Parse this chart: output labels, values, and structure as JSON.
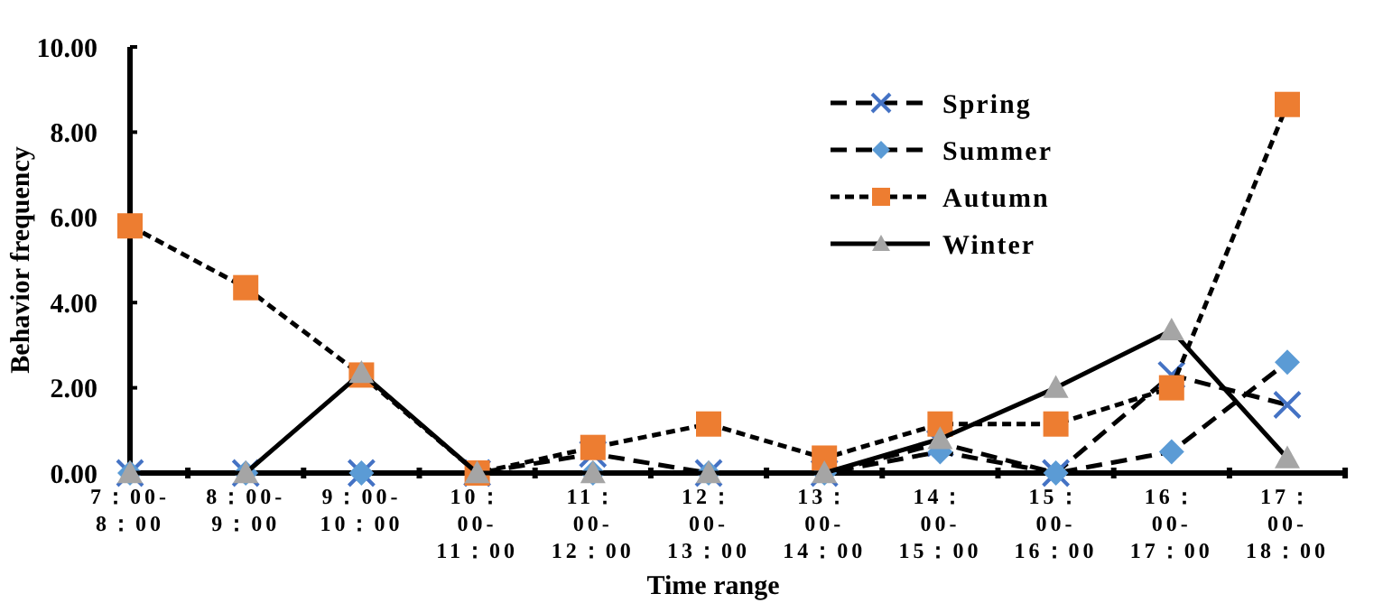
{
  "chart_data": {
    "type": "line",
    "xlabel": "Time range",
    "ylabel": "Behavior frequency",
    "categories": [
      "7：00-8：00",
      "8：00-9：00",
      "9：00-10：00",
      "10：00-11：00",
      "11：00-12：00",
      "12：00-13：00",
      "13：00-14：00",
      "14：00-15：00",
      "15：00-16：00",
      "16：00-17：00",
      "17：00-18：00"
    ],
    "series": [
      {
        "name": "Spring",
        "color": "#4472c4",
        "marker": "cross",
        "line_style": "dashed",
        "values": [
          0,
          0,
          0,
          0,
          0.45,
          0,
          0,
          0.7,
          0,
          2.3,
          1.6
        ]
      },
      {
        "name": "Summer",
        "color": "#5b9bd5",
        "marker": "diamond",
        "line_style": "dashed",
        "values": [
          0,
          0,
          0,
          0,
          0,
          0,
          0,
          0.5,
          0,
          0.5,
          2.6
        ]
      },
      {
        "name": "Autumn",
        "color": "#ed7d31",
        "marker": "square",
        "line_style": "dotted",
        "values": [
          5.8,
          4.35,
          2.3,
          0,
          0.6,
          1.15,
          0.35,
          1.15,
          1.15,
          2.0,
          8.65
        ]
      },
      {
        "name": "Winter",
        "color": "#a5a5a5",
        "marker": "triangle",
        "line_style": "solid",
        "values": [
          0,
          0,
          2.35,
          0,
          0,
          0,
          0,
          0.8,
          2.0,
          3.35,
          0.35
        ]
      }
    ],
    "ylim": [
      0,
      10
    ],
    "yticks": [
      {
        "value": 0,
        "label": "0.00"
      },
      {
        "value": 2,
        "label": "2.00"
      },
      {
        "value": 4,
        "label": "4.00"
      },
      {
        "value": 6,
        "label": "6.00"
      },
      {
        "value": 8,
        "label": "8.00"
      },
      {
        "value": 10,
        "label": "10.00"
      }
    ],
    "legend": "top right",
    "grid": false
  }
}
